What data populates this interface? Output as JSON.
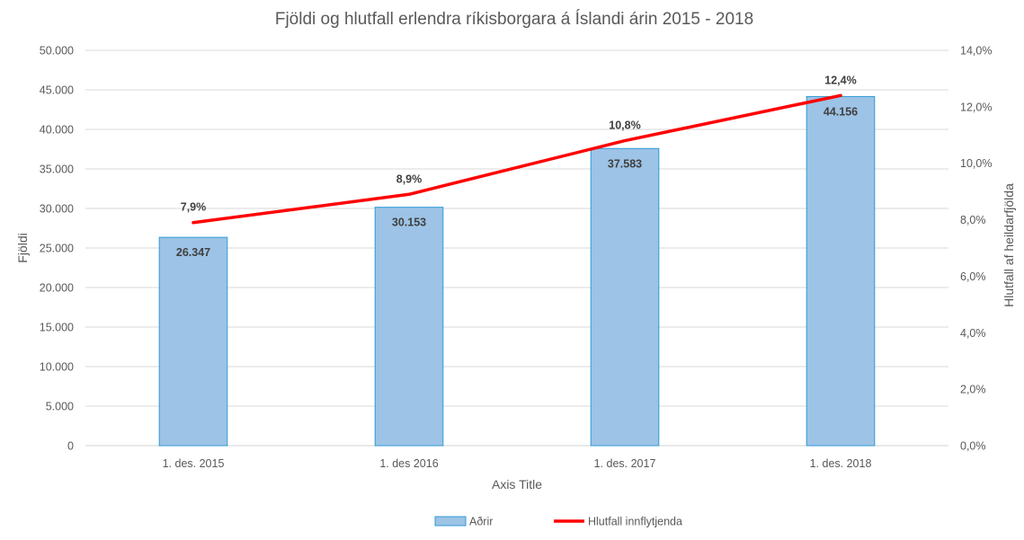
{
  "chart_data": {
    "type": "bar",
    "title": "Fjöldi og hlutfall erlendra ríkisborgara á Íslandi árin 2015 - 2018",
    "xlabel": "Axis Title",
    "ylabel": "Fjöldi",
    "y2label": "Hlutfall af heildarfjölda",
    "categories": [
      "1. des. 2015",
      "1. des 2016",
      "1. des. 2017",
      "1. des. 2018"
    ],
    "ylim": [
      0,
      50000
    ],
    "y2lim": [
      0,
      14
    ],
    "yticks": [
      "0",
      "5.000",
      "10.000",
      "15.000",
      "20.000",
      "25.000",
      "30.000",
      "35.000",
      "40.000",
      "45.000",
      "50.000"
    ],
    "y2ticks": [
      "0,0%",
      "2,0%",
      "4,0%",
      "6,0%",
      "8,0%",
      "10,0%",
      "12,0%",
      "14,0%"
    ],
    "grid": true,
    "legend_position": "bottom",
    "series": [
      {
        "name": "Aðrir",
        "type": "bar",
        "axis": "left",
        "values": [
          26347,
          30153,
          37583,
          44156
        ],
        "labels": [
          "26.347",
          "30.153",
          "37.583",
          "44.156"
        ],
        "color": "#9dc3e6",
        "border_color": "#2e9bd6"
      },
      {
        "name": "Hlutfall innflytjenda",
        "type": "line",
        "axis": "right",
        "values": [
          7.9,
          8.9,
          10.8,
          12.4
        ],
        "labels": [
          "7,9%",
          "8,9%",
          "10,8%",
          "12,4%"
        ],
        "color": "#ff0000"
      }
    ]
  }
}
